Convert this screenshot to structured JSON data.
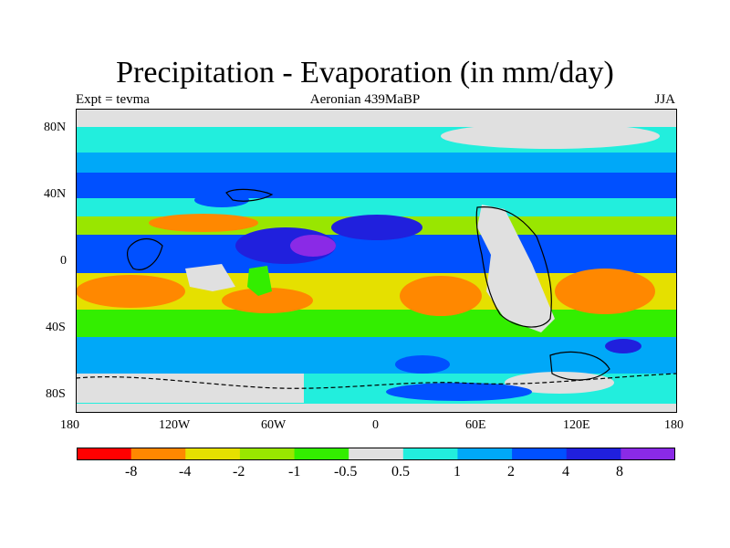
{
  "title": "Precipitation - Evaporation (in mm/day)",
  "subtitle_left": "Expt = tevma",
  "subtitle_center": "Aeronian 439MaBP",
  "subtitle_right": "JJA",
  "lat_ticks": [
    "80N",
    "40N",
    "0",
    "40S",
    "80S"
  ],
  "lon_ticks": [
    "180",
    "120W",
    "60W",
    "0",
    "60E",
    "120E",
    "180"
  ],
  "colorbar": {
    "colors": [
      "#ff0000",
      "#ff8800",
      "#e5e000",
      "#99e600",
      "#33ee00",
      "#e0e0e0",
      "#22eedd",
      "#00a8f8",
      "#0050ff",
      "#2020dd",
      "#8a2ae6"
    ],
    "labels": [
      "-8",
      "-4",
      "-2",
      "-1",
      "-0.5",
      "0.5",
      "1",
      "2",
      "4",
      "8"
    ]
  },
  "colors": {
    "land_outline": "#000000",
    "background": "#ffffff"
  }
}
